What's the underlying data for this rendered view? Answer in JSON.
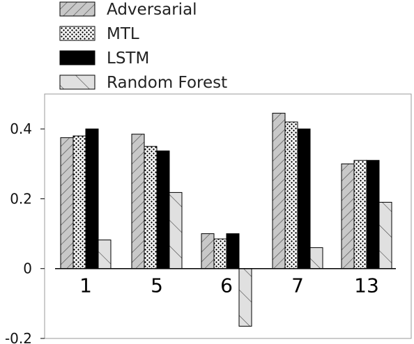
{
  "chart_data": {
    "type": "bar",
    "title": "",
    "xlabel": "",
    "ylabel": "",
    "categories": [
      "1",
      "5",
      "6",
      "7",
      "13"
    ],
    "series": [
      {
        "name": "Adversarial",
        "pattern": "diagonal-hatch",
        "fill": "#c8c8c8",
        "values": [
          0.375,
          0.385,
          0.1,
          0.445,
          0.3
        ]
      },
      {
        "name": "MTL",
        "pattern": "dots",
        "fill": "#ffffff",
        "values": [
          0.38,
          0.35,
          0.085,
          0.42,
          0.31
        ]
      },
      {
        "name": "LSTM",
        "pattern": "solid",
        "fill": "#000000",
        "values": [
          0.4,
          0.337,
          0.1,
          0.4,
          0.31
        ]
      },
      {
        "name": "Random Forest",
        "pattern": "backslash-hatch",
        "fill": "#e0e0e0",
        "values": [
          0.082,
          0.218,
          -0.165,
          0.06,
          0.19
        ]
      }
    ],
    "ylim": [
      -0.2,
      0.5
    ],
    "yticks": [
      "-0.2",
      "0",
      "0.2",
      "0.4"
    ],
    "grid": false,
    "legend_position": "top-left, above plot"
  }
}
